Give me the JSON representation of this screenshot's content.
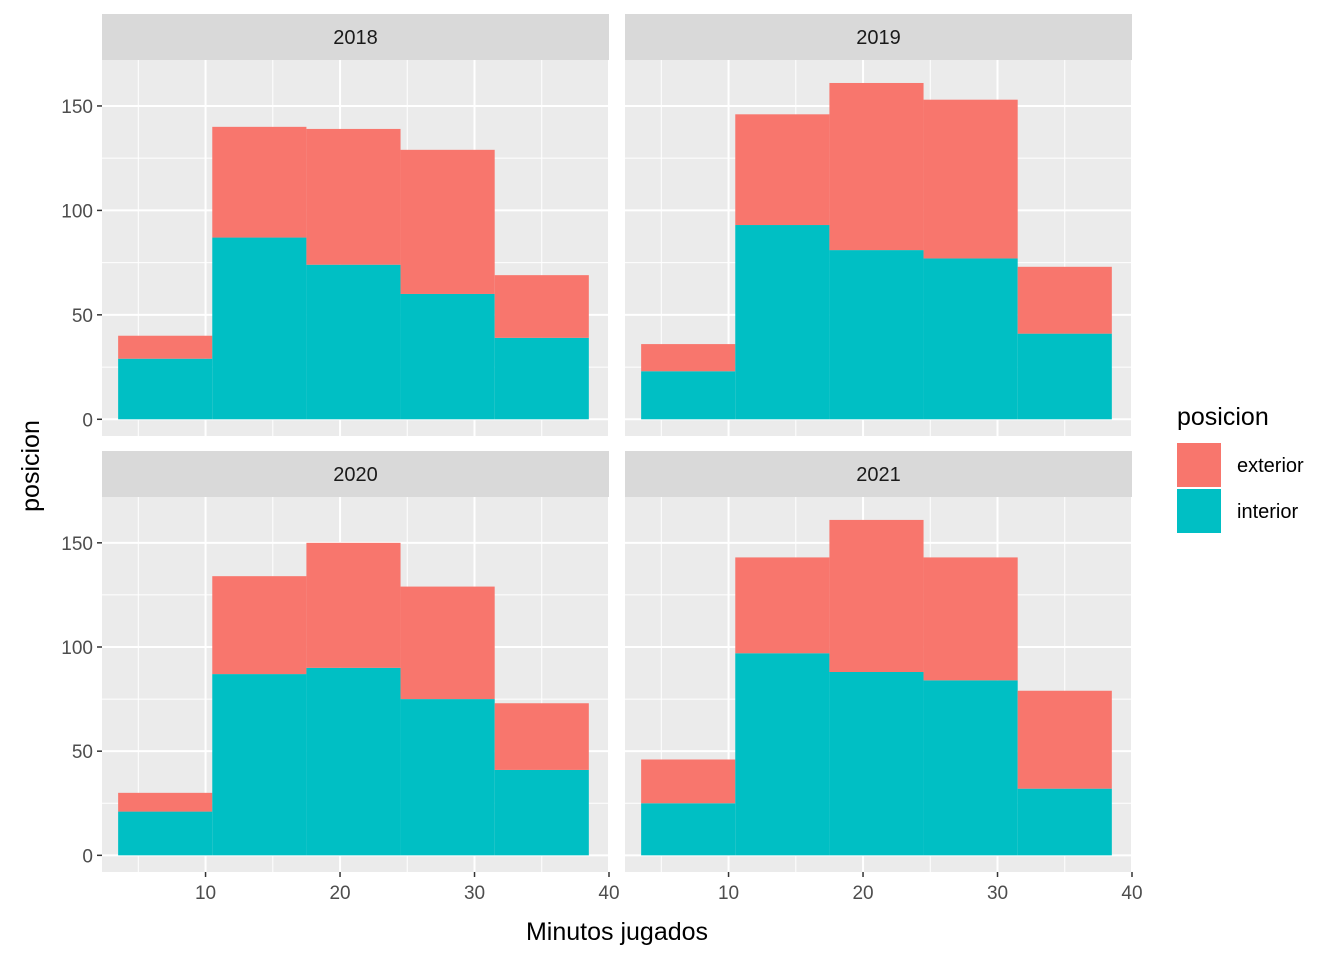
{
  "chart_data": {
    "type": "bar",
    "subtype": "faceted-stacked-histogram",
    "xlabel": "Minutos jugados",
    "ylabel": "posicion",
    "xlim": [
      2.3,
      40
    ],
    "ylim": [
      -8,
      172
    ],
    "x_ticks": [
      10,
      20,
      30,
      40
    ],
    "y_ticks": [
      0,
      50,
      100,
      150
    ],
    "grid": true,
    "legend": {
      "title": "posicion",
      "position": "right",
      "entries": [
        {
          "name": "exterior",
          "color": "#F8766D"
        },
        {
          "name": "interior",
          "color": "#00BFC4"
        }
      ]
    },
    "bins": [
      [
        3.5,
        10.5
      ],
      [
        10.5,
        17.5
      ],
      [
        17.5,
        24.5
      ],
      [
        24.5,
        31.5
      ],
      [
        31.5,
        38.5
      ]
    ],
    "facets": [
      {
        "label": "2018",
        "series": [
          {
            "name": "interior",
            "values": [
              29,
              87,
              74,
              60,
              39
            ]
          },
          {
            "name": "exterior",
            "values": [
              11,
              53,
              65,
              69,
              30
            ]
          }
        ]
      },
      {
        "label": "2019",
        "series": [
          {
            "name": "interior",
            "values": [
              23,
              93,
              81,
              77,
              41
            ]
          },
          {
            "name": "exterior",
            "values": [
              13,
              53,
              80,
              76,
              32
            ]
          }
        ]
      },
      {
        "label": "2020",
        "series": [
          {
            "name": "interior",
            "values": [
              21,
              87,
              90,
              75,
              41
            ]
          },
          {
            "name": "exterior",
            "values": [
              9,
              47,
              60,
              54,
              32
            ]
          }
        ]
      },
      {
        "label": "2021",
        "series": [
          {
            "name": "interior",
            "values": [
              25,
              97,
              88,
              84,
              32
            ]
          },
          {
            "name": "exterior",
            "values": [
              21,
              46,
              73,
              59,
              47
            ]
          }
        ]
      }
    ]
  }
}
